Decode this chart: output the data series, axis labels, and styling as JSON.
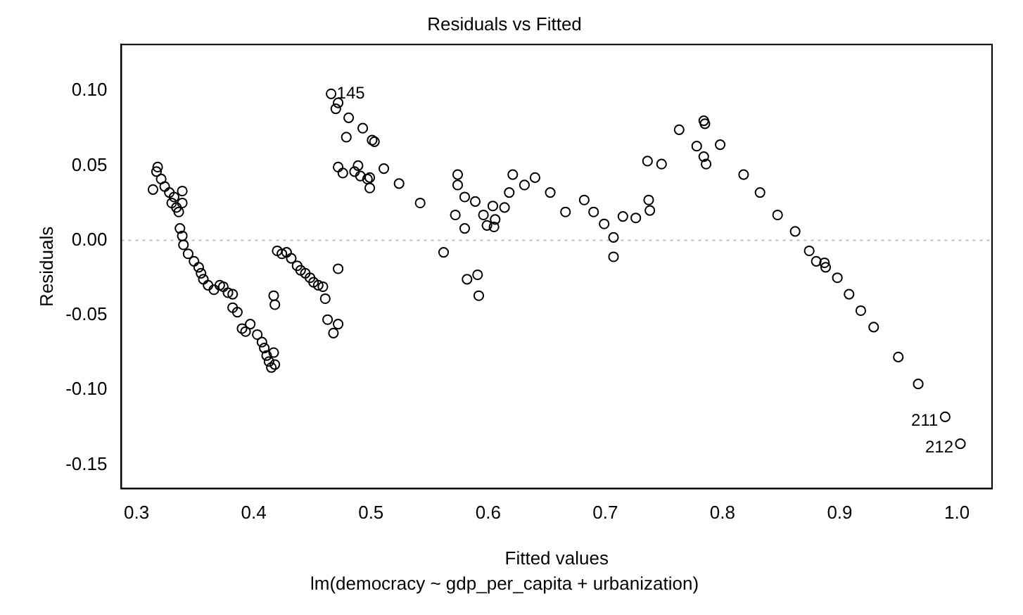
{
  "chart_data": {
    "type": "scatter",
    "title": "Residuals vs Fitted",
    "subtitle": "lm(democracy ~ gdp_per_capita + urbanization)",
    "xlabel": "Fitted values",
    "ylabel": "Residuals",
    "marker": "circle",
    "grid": false,
    "legend": false,
    "xlim": [
      0.287,
      1.03
    ],
    "ylim": [
      -0.166,
      0.131
    ],
    "xticks": [
      0.3,
      0.4,
      0.5,
      0.6,
      0.7,
      0.8,
      0.9,
      {
        "value": 1,
        "label": "1.0"
      }
    ],
    "yticks": [
      -0.15,
      {
        "value": -0.1,
        "label": "-0.10"
      },
      -0.05,
      {
        "value": 0,
        "label": "0.00"
      },
      0.05,
      {
        "value": 0.1,
        "label": "0.10"
      }
    ],
    "ref_lines": [
      {
        "axis": "y",
        "value": 0,
        "color": "#bebebe",
        "line_style": "dotted"
      }
    ],
    "annotations": [
      {
        "text": "145",
        "x": 0.466,
        "y": 0.098
      },
      {
        "text": "211",
        "x": 0.99,
        "y": -0.118
      },
      {
        "text": "212",
        "x": 1.003,
        "y": -0.136
      }
    ],
    "series": [
      {
        "color": "#000000",
        "x": [
          0.314,
          0.318,
          0.317,
          0.321,
          0.324,
          0.328,
          0.332,
          0.33,
          0.334,
          0.336,
          0.339,
          0.339,
          0.337,
          0.339,
          0.34,
          0.344,
          0.349,
          0.353,
          0.355,
          0.357,
          0.361,
          0.366,
          0.371,
          0.374,
          0.378,
          0.382,
          0.382,
          0.386,
          0.39,
          0.393,
          0.397,
          0.403,
          0.407,
          0.409,
          0.411,
          0.413,
          0.415,
          0.418,
          0.417,
          0.417,
          0.418,
          0.42,
          0.424,
          0.428,
          0.432,
          0.437,
          0.44,
          0.444,
          0.448,
          0.451,
          0.455,
          0.459,
          0.461,
          0.472,
          0.463,
          0.468,
          0.472,
          0.466,
          0.47,
          0.472,
          0.481,
          0.479,
          0.493,
          0.501,
          0.472,
          0.476,
          0.486,
          0.489,
          0.491,
          0.497,
          0.499,
          0.503,
          0.499,
          0.511,
          0.524,
          0.542,
          0.562,
          0.572,
          0.574,
          0.574,
          0.58,
          0.58,
          0.582,
          0.591,
          0.592,
          0.589,
          0.596,
          0.599,
          0.604,
          0.606,
          0.605,
          0.614,
          0.618,
          0.621,
          0.631,
          0.64,
          0.653,
          0.666,
          0.682,
          0.69,
          0.699,
          0.707,
          0.707,
          0.715,
          0.726,
          0.736,
          0.737,
          0.738,
          0.748,
          0.763,
          0.784,
          0.785,
          0.778,
          0.784,
          0.786,
          0.798,
          0.818,
          0.832,
          0.847,
          0.862,
          0.874,
          0.88,
          0.887,
          0.888,
          0.898,
          0.908,
          0.918,
          0.929,
          0.95,
          0.967,
          0.99,
          1.003
        ],
        "values": [
          0.034,
          0.049,
          0.046,
          0.041,
          0.036,
          0.032,
          0.029,
          0.025,
          0.022,
          0.019,
          0.033,
          0.025,
          0.008,
          0.003,
          -0.003,
          -0.009,
          -0.014,
          -0.018,
          -0.022,
          -0.026,
          -0.03,
          -0.033,
          -0.03,
          -0.031,
          -0.035,
          -0.036,
          -0.045,
          -0.048,
          -0.059,
          -0.061,
          -0.056,
          -0.063,
          -0.068,
          -0.072,
          -0.077,
          -0.081,
          -0.085,
          -0.083,
          -0.075,
          -0.037,
          -0.043,
          -0.007,
          -0.009,
          -0.008,
          -0.012,
          -0.017,
          -0.02,
          -0.022,
          -0.025,
          -0.028,
          -0.03,
          -0.031,
          -0.039,
          -0.019,
          -0.053,
          -0.062,
          -0.056,
          0.098,
          0.088,
          0.092,
          0.082,
          0.069,
          0.075,
          0.067,
          0.049,
          0.045,
          0.046,
          0.05,
          0.043,
          0.041,
          0.035,
          0.066,
          0.042,
          0.048,
          0.038,
          0.025,
          -0.008,
          0.017,
          0.037,
          0.044,
          0.029,
          0.008,
          -0.026,
          -0.023,
          -0.037,
          0.026,
          0.017,
          0.01,
          0.023,
          0.014,
          0.009,
          0.022,
          0.032,
          0.044,
          0.037,
          0.042,
          0.032,
          0.019,
          0.027,
          0.019,
          0.011,
          0.002,
          -0.011,
          0.016,
          0.015,
          0.053,
          0.027,
          0.02,
          0.051,
          0.074,
          0.08,
          0.078,
          0.063,
          0.056,
          0.051,
          0.064,
          0.044,
          0.032,
          0.017,
          0.006,
          -0.007,
          -0.014,
          -0.015,
          -0.018,
          -0.025,
          -0.036,
          -0.047,
          -0.058,
          -0.078,
          -0.096,
          -0.118,
          -0.136
        ]
      }
    ]
  }
}
